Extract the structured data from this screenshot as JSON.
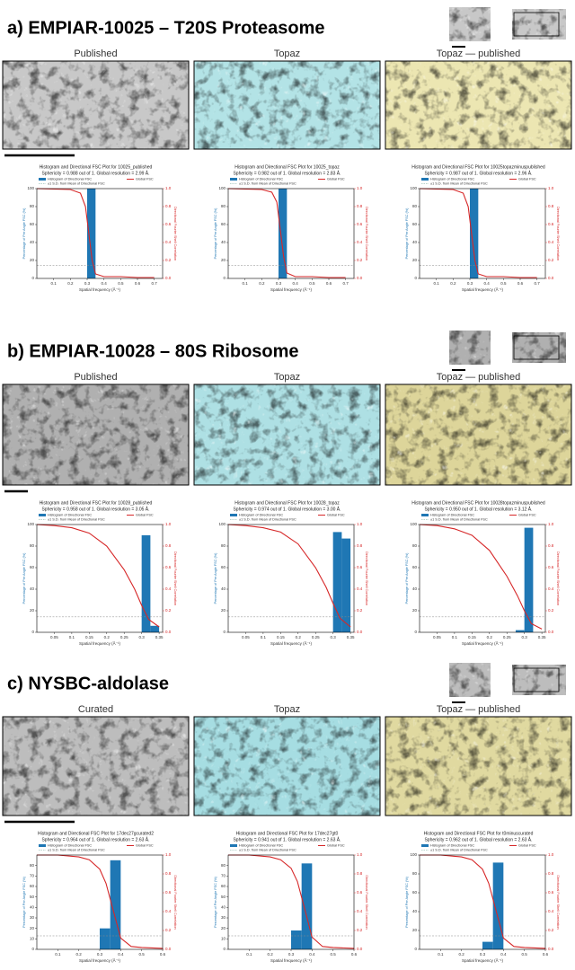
{
  "legend": {
    "hist": "Histogram of Directional FSC",
    "global": "Global FSC",
    "sd": "±1 S.D. from Mean of Directional FSC"
  },
  "axes": {
    "x": "Spatial frequency (Å⁻¹)",
    "y": "Percentage of Per Angle FSC (%)",
    "y2": "Directional Fourier Shell Correlation"
  },
  "fsc_threshold": 0.143,
  "bar_color": "#1f77b4",
  "fsc_color": "#d62728",
  "panels": [
    {
      "title": "a) EMPIAR-10025 – T20S Proteasome",
      "columns": [
        {
          "label": "Published",
          "color": "#c8c8c8",
          "plot": {
            "title": "Histogram and Directional FSC Plot for 10025_published",
            "subtitle": "Sphericity = 0.988 out of 1. Global resolution = 2.99 Å.",
            "xlim": [
              0,
              0.75
            ],
            "xticks": [
              0.1,
              0.2,
              0.3,
              0.4,
              0.5,
              0.6,
              0.7
            ],
            "ylim": [
              0,
              100
            ],
            "yticks": [
              0,
              20,
              40,
              60,
              80,
              100
            ],
            "y2lim": [
              0,
              1
            ],
            "y2ticks": [
              {
                "value": 0,
                "label": "0.0"
              },
              0.2,
              0.4,
              0.6,
              0.8,
              {
                "value": 1,
                "label": "1.0"
              }
            ],
            "bins": [
              0.3,
              0.35
            ],
            "counts": [
              100
            ],
            "fsc": {
              "x": [
                0,
                0.2,
                0.26,
                0.29,
                0.31,
                0.33,
                0.35,
                0.4,
                0.5,
                0.6,
                0.7
              ],
              "values": [
                1,
                0.99,
                0.95,
                0.8,
                0.5,
                0.2,
                0.05,
                0.02,
                0.02,
                0.01,
                0.01
              ]
            }
          }
        },
        {
          "label": "Topaz",
          "color": "#b3e3e6",
          "plot": {
            "title": "Histogram and Directional FSC Plot for 10025_topaz",
            "subtitle": "Sphericity = 0.982 out of 1. Global resolution = 2.83 Å.",
            "xlim": [
              0,
              0.75
            ],
            "xticks": [
              0.1,
              0.2,
              0.3,
              0.4,
              0.5,
              0.6,
              0.7
            ],
            "ylim": [
              0,
              100
            ],
            "yticks": [
              0,
              20,
              40,
              60,
              80,
              100
            ],
            "y2lim": [
              0,
              1
            ],
            "y2ticks": [
              {
                "value": 0,
                "label": "0.0"
              },
              0.2,
              0.4,
              0.6,
              0.8,
              {
                "value": 1,
                "label": "1.0"
              }
            ],
            "bins": [
              0.3,
              0.35
            ],
            "counts": [
              100
            ],
            "fsc": {
              "x": [
                0,
                0.2,
                0.26,
                0.29,
                0.31,
                0.33,
                0.35,
                0.4,
                0.5,
                0.6,
                0.7
              ],
              "values": [
                1,
                0.99,
                0.96,
                0.85,
                0.55,
                0.25,
                0.06,
                0.02,
                0.02,
                0.01,
                0.01
              ]
            }
          }
        },
        {
          "label": "Topaz — published",
          "color": "#ece6b2",
          "plot": {
            "title": "Histogram and Directional FSC Plot for 10025topazminuspublished",
            "subtitle": "Sphericity = 0.987 out of 1. Global resolution = 2.96 Å.",
            "xlim": [
              0,
              0.75
            ],
            "xticks": [
              0.1,
              0.2,
              0.3,
              0.4,
              0.5,
              0.6,
              0.7
            ],
            "ylim": [
              0,
              100
            ],
            "yticks": [
              0,
              20,
              40,
              60,
              80,
              100
            ],
            "y2lim": [
              0,
              1
            ],
            "y2ticks": [
              {
                "value": 0,
                "label": "0.0"
              },
              0.2,
              0.4,
              0.6,
              0.8,
              {
                "value": 1,
                "label": "1.0"
              }
            ],
            "bins": [
              0.3,
              0.35
            ],
            "counts": [
              100
            ],
            "fsc": {
              "x": [
                0,
                0.2,
                0.26,
                0.29,
                0.31,
                0.33,
                0.35,
                0.4,
                0.5,
                0.6,
                0.7
              ],
              "values": [
                1,
                0.99,
                0.95,
                0.8,
                0.5,
                0.2,
                0.05,
                0.02,
                0.02,
                0.01,
                0.01
              ]
            }
          }
        }
      ]
    },
    {
      "title": "b) EMPIAR-10028 – 80S Ribosome",
      "columns": [
        {
          "label": "Published",
          "color": "#b0b0b0",
          "plot": {
            "title": "Histogram and Directional FSC Plot for 10028_published",
            "subtitle": "Sphericity = 0.958 out of 1. Global resolution = 3.05 Å.",
            "xlim": [
              0,
              0.36
            ],
            "xticks": [
              0.05,
              0.1,
              0.15,
              0.2,
              0.25,
              0.3,
              0.35
            ],
            "ylim": [
              0,
              100
            ],
            "yticks": [
              0,
              20,
              40,
              60,
              80,
              100
            ],
            "y2lim": [
              0,
              1
            ],
            "y2ticks": [
              {
                "value": 0,
                "label": "0.0"
              },
              0.2,
              0.4,
              0.6,
              0.8,
              {
                "value": 1,
                "label": "1.0"
              }
            ],
            "bins": [
              0.3,
              0.325,
              0.35
            ],
            "counts": [
              90,
              6
            ],
            "fsc": {
              "x": [
                0,
                0.05,
                0.1,
                0.15,
                0.2,
                0.25,
                0.28,
                0.3,
                0.32,
                0.35
              ],
              "values": [
                1,
                0.99,
                0.97,
                0.92,
                0.8,
                0.58,
                0.4,
                0.25,
                0.12,
                0.05
              ]
            }
          }
        },
        {
          "label": "Topaz",
          "color": "#aee0e4",
          "plot": {
            "title": "Histogram and Directional FSC Plot for 10028_topaz",
            "subtitle": "Sphericity = 0.974 out of 1. Global resolution = 3.00 Å.",
            "xlim": [
              0,
              0.36
            ],
            "xticks": [
              0.05,
              0.1,
              0.15,
              0.2,
              0.25,
              0.3,
              0.35
            ],
            "ylim": [
              0,
              100
            ],
            "yticks": [
              0,
              20,
              40,
              60,
              80,
              100
            ],
            "y2lim": [
              0,
              1
            ],
            "y2ticks": [
              {
                "value": 0,
                "label": "0.0"
              },
              0.2,
              0.4,
              0.6,
              0.8,
              {
                "value": 1,
                "label": "1.0"
              }
            ],
            "bins": [
              0.3,
              0.325,
              0.35
            ],
            "counts": [
              93,
              87
            ],
            "fsc": {
              "x": [
                0,
                0.05,
                0.1,
                0.15,
                0.2,
                0.25,
                0.28,
                0.3,
                0.32,
                0.35
              ],
              "values": [
                1,
                0.99,
                0.97,
                0.93,
                0.82,
                0.6,
                0.42,
                0.27,
                0.13,
                0.05
              ]
            }
          }
        },
        {
          "label": "Topaz — published",
          "color": "#ddd59a",
          "plot": {
            "title": "Histogram and Directional FSC Plot for 10028topazminuspublished",
            "subtitle": "Sphericity = 0.950 out of 1. Global resolution = 3.12 Å.",
            "xlim": [
              0,
              0.36
            ],
            "xticks": [
              0.05,
              0.1,
              0.15,
              0.2,
              0.25,
              0.3,
              0.35
            ],
            "ylim": [
              0,
              100
            ],
            "yticks": [
              0,
              20,
              40,
              60,
              80,
              100
            ],
            "y2lim": [
              0,
              1
            ],
            "y2ticks": [
              {
                "value": 0,
                "label": "0.0"
              },
              0.2,
              0.4,
              0.6,
              0.8,
              {
                "value": 1,
                "label": "1.0"
              }
            ],
            "bins": [
              0.275,
              0.3,
              0.325
            ],
            "counts": [
              2,
              97
            ],
            "fsc": {
              "x": [
                0,
                0.05,
                0.1,
                0.15,
                0.2,
                0.25,
                0.28,
                0.3,
                0.32,
                0.35
              ],
              "values": [
                1,
                0.99,
                0.96,
                0.9,
                0.76,
                0.52,
                0.34,
                0.2,
                0.08,
                0.03
              ]
            }
          }
        }
      ]
    },
    {
      "title": "c) NYSBC-aldolase",
      "columns": [
        {
          "label": "Curated",
          "color": "#bdbdbd",
          "plot": {
            "title": "Histogram and Directional FSC Plot for 17dec27gcurated2",
            "subtitle": "Sphericity = 0.964 out of 1. Global resolution = 2.63 Å.",
            "xlim": [
              0,
              0.6
            ],
            "xticks": [
              0.1,
              0.2,
              0.3,
              0.4,
              0.5,
              0.6
            ],
            "ylim": [
              0,
              90
            ],
            "yticks": [
              0,
              10,
              20,
              30,
              40,
              50,
              60,
              70,
              80
            ],
            "y2lim": [
              0,
              1
            ],
            "y2ticks": [
              {
                "value": 0,
                "label": "0.0"
              },
              0.2,
              0.4,
              0.6,
              0.8,
              {
                "value": 1,
                "label": "1.0"
              }
            ],
            "bins": [
              0.3,
              0.35,
              0.4
            ],
            "counts": [
              20,
              85
            ],
            "fsc": {
              "x": [
                0,
                0.1,
                0.2,
                0.25,
                0.3,
                0.33,
                0.36,
                0.4,
                0.45,
                0.5,
                0.6
              ],
              "values": [
                1,
                1,
                0.98,
                0.95,
                0.85,
                0.7,
                0.45,
                0.12,
                0.03,
                0.02,
                0.01
              ]
            }
          }
        },
        {
          "label": "Topaz",
          "color": "#a6dde2",
          "plot": {
            "title": "Histogram and Directional FSC Plot for 17dec27gt0",
            "subtitle": "Sphericity = 0.941 out of 1. Global resolution = 2.63 Å.",
            "xlim": [
              0,
              0.6
            ],
            "xticks": [
              0.1,
              0.2,
              0.3,
              0.4,
              0.5,
              0.6
            ],
            "ylim": [
              0,
              90
            ],
            "yticks": [
              0,
              10,
              20,
              30,
              40,
              50,
              60,
              70,
              80
            ],
            "y2lim": [
              0,
              1
            ],
            "y2ticks": [
              {
                "value": 0,
                "label": "0.0"
              },
              0.2,
              0.4,
              0.6,
              0.8,
              {
                "value": 1,
                "label": "1.0"
              }
            ],
            "bins": [
              0.3,
              0.35,
              0.4
            ],
            "counts": [
              18,
              82
            ],
            "fsc": {
              "x": [
                0,
                0.1,
                0.2,
                0.25,
                0.3,
                0.33,
                0.36,
                0.4,
                0.45,
                0.5,
                0.6
              ],
              "values": [
                1,
                1,
                0.98,
                0.95,
                0.86,
                0.72,
                0.47,
                0.13,
                0.03,
                0.02,
                0.01
              ]
            }
          }
        },
        {
          "label": "Topaz — published",
          "color": "#e0d9a0",
          "plot": {
            "title": "Histogram and Directional FSC Plot for t0minuscurated",
            "subtitle": "Sphericity = 0.962 out of 1. Global resolution = 2.63 Å.",
            "xlim": [
              0,
              0.6
            ],
            "xticks": [
              0.1,
              0.2,
              0.3,
              0.4,
              0.5,
              0.6
            ],
            "ylim": [
              0,
              100
            ],
            "yticks": [
              0,
              20,
              40,
              60,
              80,
              100
            ],
            "y2lim": [
              0,
              1
            ],
            "y2ticks": [
              {
                "value": 0,
                "label": "0.0"
              },
              0.2,
              0.4,
              0.6,
              0.8,
              {
                "value": 1,
                "label": "1.0"
              }
            ],
            "bins": [
              0.3,
              0.35,
              0.4
            ],
            "counts": [
              8,
              92
            ],
            "fsc": {
              "x": [
                0,
                0.1,
                0.2,
                0.25,
                0.3,
                0.33,
                0.36,
                0.4,
                0.45,
                0.5,
                0.6
              ],
              "values": [
                1,
                1,
                0.98,
                0.95,
                0.85,
                0.7,
                0.45,
                0.12,
                0.03,
                0.02,
                0.01
              ]
            }
          }
        }
      ]
    }
  ]
}
